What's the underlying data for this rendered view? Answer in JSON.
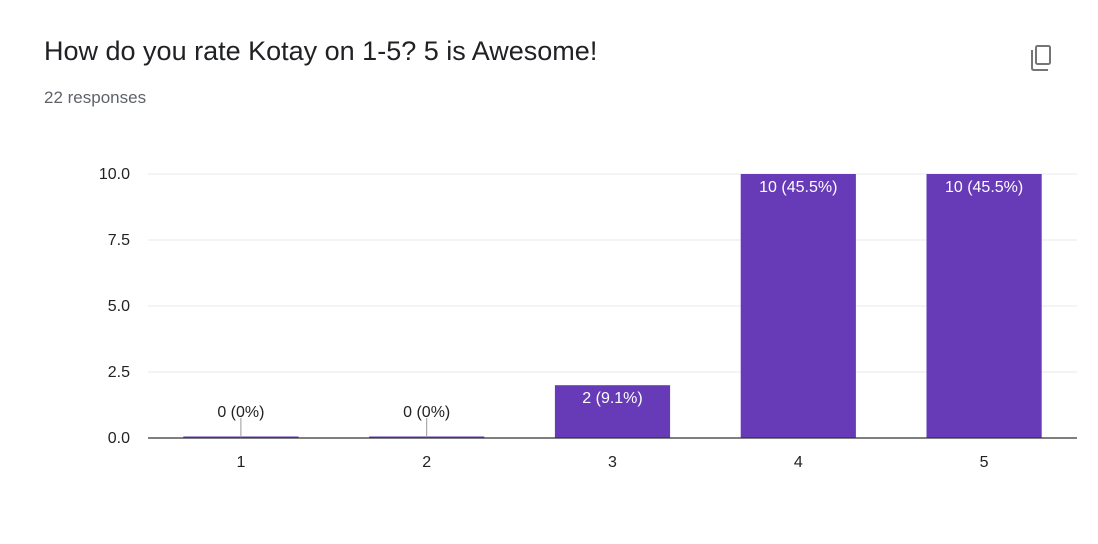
{
  "header": {
    "title": "How do you rate Kotay on 1-5? 5 is Awesome!",
    "responses": "22 responses"
  },
  "icons": {
    "copy": "copy-icon"
  },
  "colors": {
    "bar": "#673ab7",
    "grid": "#e8e8e8",
    "axis": "#333333",
    "label_inside": "#ffffff",
    "label_outside": "#222222"
  },
  "chart_data": {
    "type": "bar",
    "title": "How do you rate Kotay on 1-5? 5 is Awesome!",
    "categories": [
      "1",
      "2",
      "3",
      "4",
      "5"
    ],
    "values": [
      0,
      0,
      2,
      10,
      10
    ],
    "data_labels": [
      "0 (0%)",
      "0 (0%)",
      "2 (9.1%)",
      "10 (45.5%)",
      "10 (45.5%)"
    ],
    "y_ticks": [
      "0.0",
      "2.5",
      "5.0",
      "7.5",
      "10.0"
    ],
    "ylim": [
      0,
      10
    ],
    "xlabel": "",
    "ylabel": "",
    "grid": true,
    "legend": "none"
  }
}
